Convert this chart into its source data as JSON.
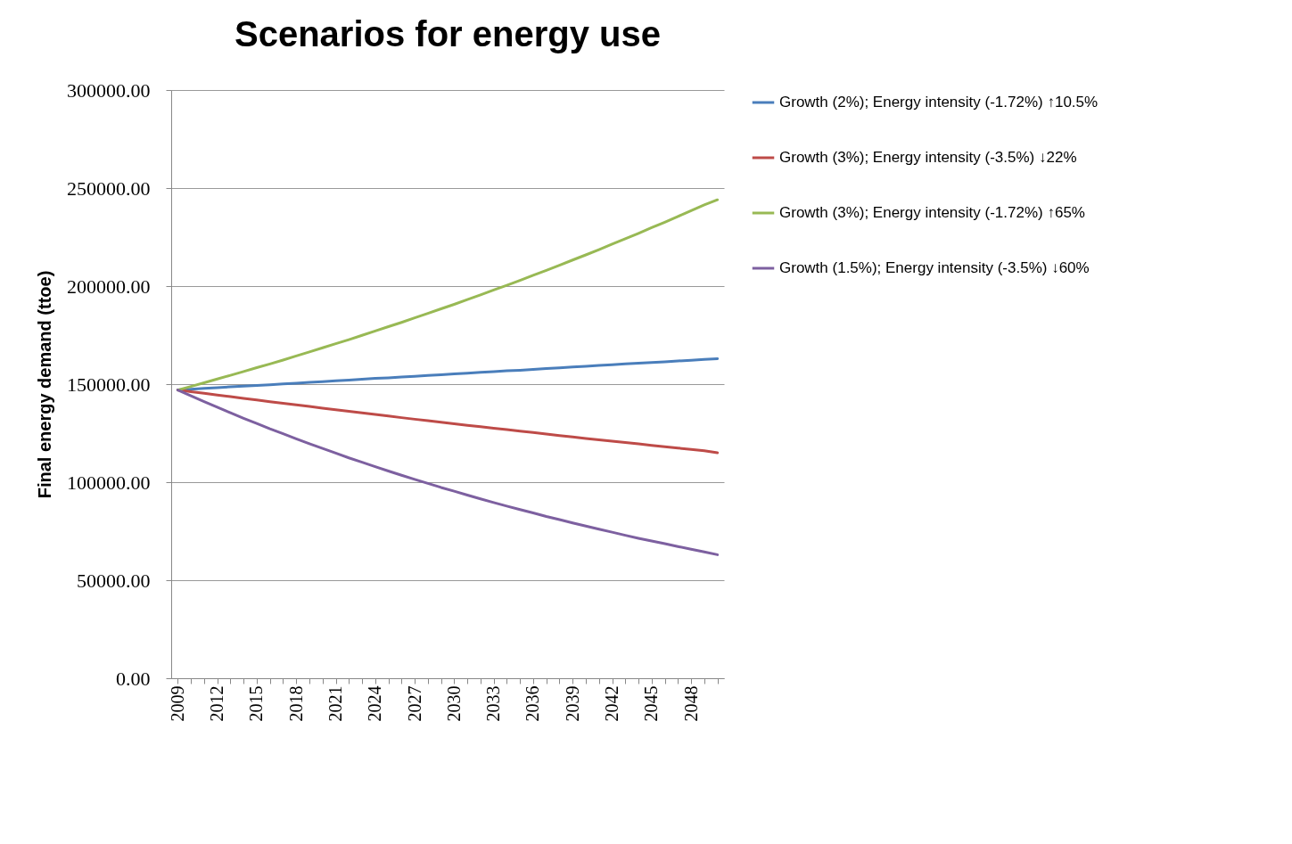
{
  "chart_data": {
    "type": "line",
    "title": "Scenarios for energy use",
    "ylabel": "Final energy demand (ttoe)",
    "categories": [
      "2009",
      null,
      null,
      "2012",
      null,
      null,
      "2015",
      null,
      null,
      "2018",
      null,
      null,
      "2021",
      null,
      null,
      "2024",
      null,
      null,
      "2027",
      null,
      null,
      "2030",
      null,
      null,
      "2033",
      null,
      null,
      "2036",
      null,
      null,
      "2039",
      null,
      null,
      "2042",
      null,
      null,
      "2045",
      null,
      null,
      "2048",
      null,
      null
    ],
    "series": [
      {
        "name": "Growth (2%); Energy intensity (-1.72%) ↑10.5%",
        "color": "#4a7ebb",
        "values": [
          147000,
          147400,
          147800,
          148200,
          148600,
          149000,
          149300,
          149700,
          150100,
          150500,
          150900,
          151300,
          151700,
          152100,
          152500,
          152900,
          153200,
          153600,
          154000,
          154400,
          154800,
          155200,
          155600,
          156000,
          156400,
          156800,
          157100,
          157500,
          157900,
          158300,
          158700,
          159100,
          159500,
          159900,
          160300,
          160700,
          161000,
          161400,
          161800,
          162200,
          162600,
          163000
        ]
      },
      {
        "name": "Growth (3%); Energy intensity (-3.5%) ↓22%",
        "color": "#be4b48",
        "values": [
          147000,
          146100,
          145300,
          144400,
          143600,
          142700,
          141900,
          141000,
          140200,
          139400,
          138600,
          137700,
          136900,
          136100,
          135300,
          134500,
          133700,
          132900,
          132100,
          131400,
          130600,
          129800,
          129000,
          128300,
          127500,
          126800,
          126000,
          125300,
          124500,
          123800,
          123100,
          122300,
          121600,
          120900,
          120200,
          119500,
          118800,
          118100,
          117400,
          116700,
          116000,
          115000
        ]
      },
      {
        "name": "Growth (3%); Energy intensity (-1.72%) ↑65%",
        "color": "#98b954",
        "values": [
          147000,
          148800,
          150700,
          152600,
          154500,
          156400,
          158400,
          160300,
          162300,
          164400,
          166400,
          168500,
          170600,
          172700,
          174900,
          177100,
          179300,
          181500,
          183800,
          186100,
          188400,
          190700,
          193100,
          195500,
          198000,
          200400,
          202900,
          205500,
          208000,
          210600,
          213300,
          215900,
          218600,
          221400,
          224100,
          226900,
          229800,
          232600,
          235500,
          238500,
          241400,
          244000
        ]
      },
      {
        "name": "Growth (1.5%); Energy intensity (-3.5%) ↓60%",
        "color": "#7d60a0",
        "values": [
          147000,
          144000,
          141100,
          138200,
          135400,
          132600,
          129900,
          127200,
          124700,
          122100,
          119600,
          117200,
          114800,
          112400,
          110200,
          107900,
          105700,
          103500,
          101400,
          99400,
          97300,
          95400,
          93400,
          91500,
          89600,
          87800,
          86000,
          84300,
          82500,
          80900,
          79200,
          77600,
          76000,
          74500,
          72900,
          71400,
          70000,
          68600,
          67200,
          65800,
          64400,
          63000
        ]
      }
    ],
    "ylim": [
      0,
      300000
    ],
    "yticks": [
      {
        "value": 0,
        "label": "0.00"
      },
      {
        "value": 50000,
        "label": "50000.00"
      },
      {
        "value": 100000,
        "label": "100000.00"
      },
      {
        "value": 150000,
        "label": "150000.00"
      },
      {
        "value": 200000,
        "label": "200000.00"
      },
      {
        "value": 250000,
        "label": "250000.00"
      },
      {
        "value": 300000,
        "label": "300000.00"
      }
    ],
    "grid": "y",
    "legend": "right",
    "marker": "none",
    "line_style": "solid"
  }
}
